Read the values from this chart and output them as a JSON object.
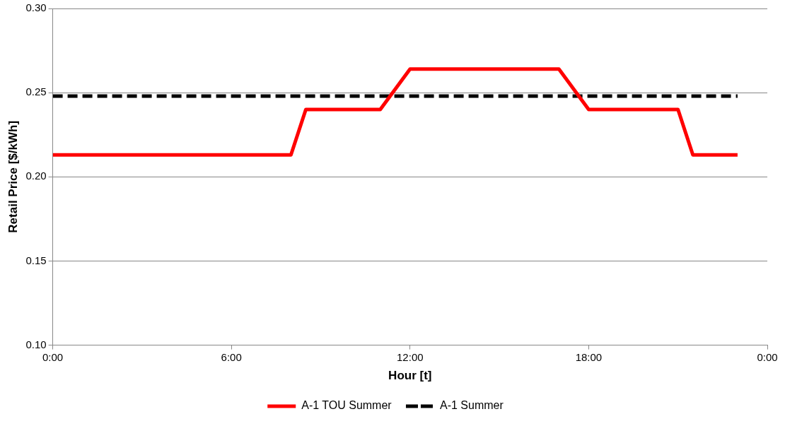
{
  "chart_data": {
    "type": "line",
    "xlabel": "Hour [t]",
    "ylabel": "Retail Price [$/kWh]",
    "xlim": [
      0,
      24
    ],
    "xticks": [
      {
        "value": 0,
        "label": "0:00"
      },
      {
        "value": 6,
        "label": "6:00"
      },
      {
        "value": 12,
        "label": "12:00"
      },
      {
        "value": 18,
        "label": "18:00"
      },
      {
        "value": 24,
        "label": "0:00"
      }
    ],
    "ylim": [
      0.1,
      0.3
    ],
    "yticks": [
      {
        "value": 0.1,
        "label": "0.10"
      },
      {
        "value": 0.15,
        "label": "0.15"
      },
      {
        "value": 0.2,
        "label": "0.20"
      },
      {
        "value": 0.25,
        "label": "0.25"
      },
      {
        "value": 0.3,
        "label": "0.30"
      }
    ],
    "grid": "y",
    "legend": "bottom",
    "marker": "none",
    "series": [
      {
        "name": "A-1 TOU Summer",
        "color": "#ff0000",
        "line_style": "solid",
        "x": [
          0,
          8,
          8.5,
          11,
          12,
          17,
          18,
          21,
          21.5,
          23
        ],
        "values": [
          0.213,
          0.213,
          0.24,
          0.24,
          0.264,
          0.264,
          0.24,
          0.24,
          0.213,
          0.213
        ]
      },
      {
        "name": "A-1 Summer",
        "color": "#000000",
        "line_style": "dashed",
        "x": [
          0,
          23
        ],
        "values": [
          0.248,
          0.248
        ]
      }
    ]
  }
}
